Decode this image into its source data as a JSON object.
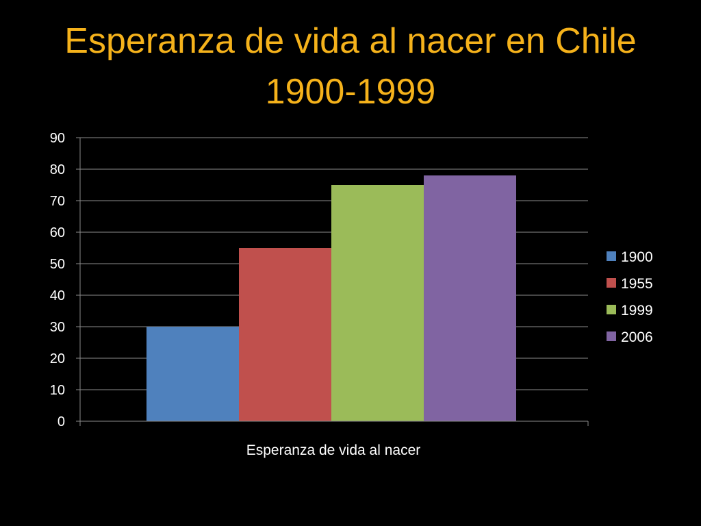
{
  "title": [
    "Esperanza de vida al nacer en Chile",
    "1900-1999"
  ],
  "colors": {
    "background": "#000000",
    "title": "#F5B21B",
    "text": "#FFFFFF",
    "gridline": "#8C8C8C"
  },
  "chart_data": {
    "type": "bar",
    "title": "Esperanza de vida al nacer en Chile 1900-1999",
    "categories": [
      "Esperanza de vida al nacer"
    ],
    "series": [
      {
        "name": "1900",
        "values": [
          30
        ],
        "color": "#4F81BD"
      },
      {
        "name": "1955",
        "values": [
          55
        ],
        "color": "#C0504D"
      },
      {
        "name": "1999",
        "values": [
          75
        ],
        "color": "#9BBB59"
      },
      {
        "name": "2006",
        "values": [
          78
        ],
        "color": "#8064A2"
      }
    ],
    "ylim": [
      0,
      90
    ],
    "yticks": [
      "0",
      "10",
      "20",
      "30",
      "40",
      "50",
      "60",
      "70",
      "80",
      "90"
    ],
    "xlabel": "",
    "ylabel": "",
    "grid": true,
    "legend": "right"
  }
}
